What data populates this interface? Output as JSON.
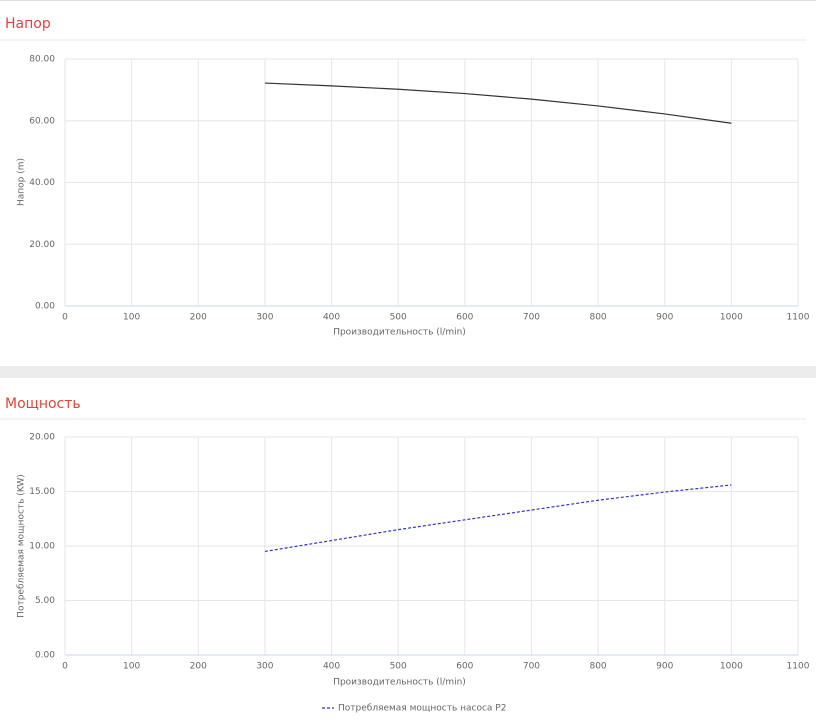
{
  "chart_data": [
    {
      "type": "line",
      "title": "Напор",
      "xlabel": "Производительность (l/min)",
      "ylabel": "Напор (m)",
      "x": [
        300,
        400,
        500,
        600,
        700,
        800,
        900,
        1000
      ],
      "series": [
        {
          "color": "#333333",
          "values": [
            72.2,
            71.3,
            70.2,
            68.8,
            67.0,
            64.8,
            62.2,
            59.2
          ]
        }
      ],
      "xlim": [
        0,
        1100
      ],
      "xticks": [
        0,
        100,
        200,
        300,
        400,
        500,
        600,
        700,
        800,
        900,
        1000,
        1100
      ],
      "ylim": [
        0,
        80
      ],
      "yticks": [
        {
          "value": 0,
          "label": "0.00"
        },
        {
          "value": 20,
          "label": "20.00"
        },
        {
          "value": 40,
          "label": "40.00"
        },
        {
          "value": 60,
          "label": "60.00"
        },
        {
          "value": 80,
          "label": "80.00"
        }
      ],
      "grid": true
    },
    {
      "type": "line",
      "title": "Мощность",
      "xlabel": "Производительность (l/min)",
      "ylabel": "Потребляемая мощность (KW)",
      "x": [
        300,
        400,
        500,
        600,
        700,
        800,
        900,
        1000
      ],
      "series": [
        {
          "name": "Потребляемая мощность насоса P2",
          "color": "#3333cc",
          "dashed": true,
          "values": [
            9.5,
            10.5,
            11.5,
            12.4,
            13.3,
            14.2,
            14.95,
            15.6
          ]
        }
      ],
      "xlim": [
        0,
        1100
      ],
      "xticks": [
        0,
        100,
        200,
        300,
        400,
        500,
        600,
        700,
        800,
        900,
        1000,
        1100
      ],
      "ylim": [
        0,
        20
      ],
      "yticks": [
        {
          "value": 0,
          "label": "0.00"
        },
        {
          "value": 5,
          "label": "5.00"
        },
        {
          "value": 10,
          "label": "10.00"
        },
        {
          "value": 15,
          "label": "15.00"
        },
        {
          "value": 20,
          "label": "20.00"
        }
      ],
      "grid": true,
      "legend": "bottom"
    }
  ]
}
